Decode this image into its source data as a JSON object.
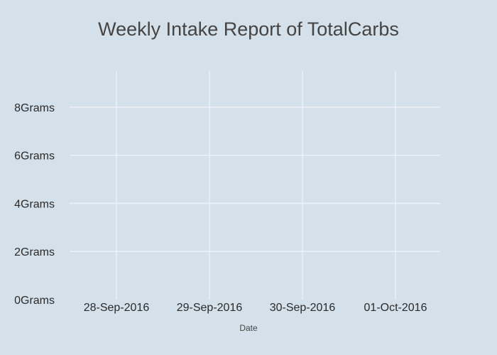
{
  "chart_data": {
    "type": "line",
    "title": "Weekly Intake Report of TotalCarbs",
    "xlabel": "Date",
    "ylabel": "",
    "categories": [
      "28-Sep-2016",
      "29-Sep-2016",
      "30-Sep-2016",
      "01-Oct-2016"
    ],
    "y_ticks": [
      0,
      2,
      4,
      6,
      8
    ],
    "y_tick_suffix": "Grams",
    "ylim": [
      0,
      9.5
    ],
    "grid": true,
    "series": [],
    "colors": {
      "background": "#d5e1ea",
      "grid": "#eef3f7",
      "title": "#444444",
      "tick": "#2a2a2a"
    }
  }
}
